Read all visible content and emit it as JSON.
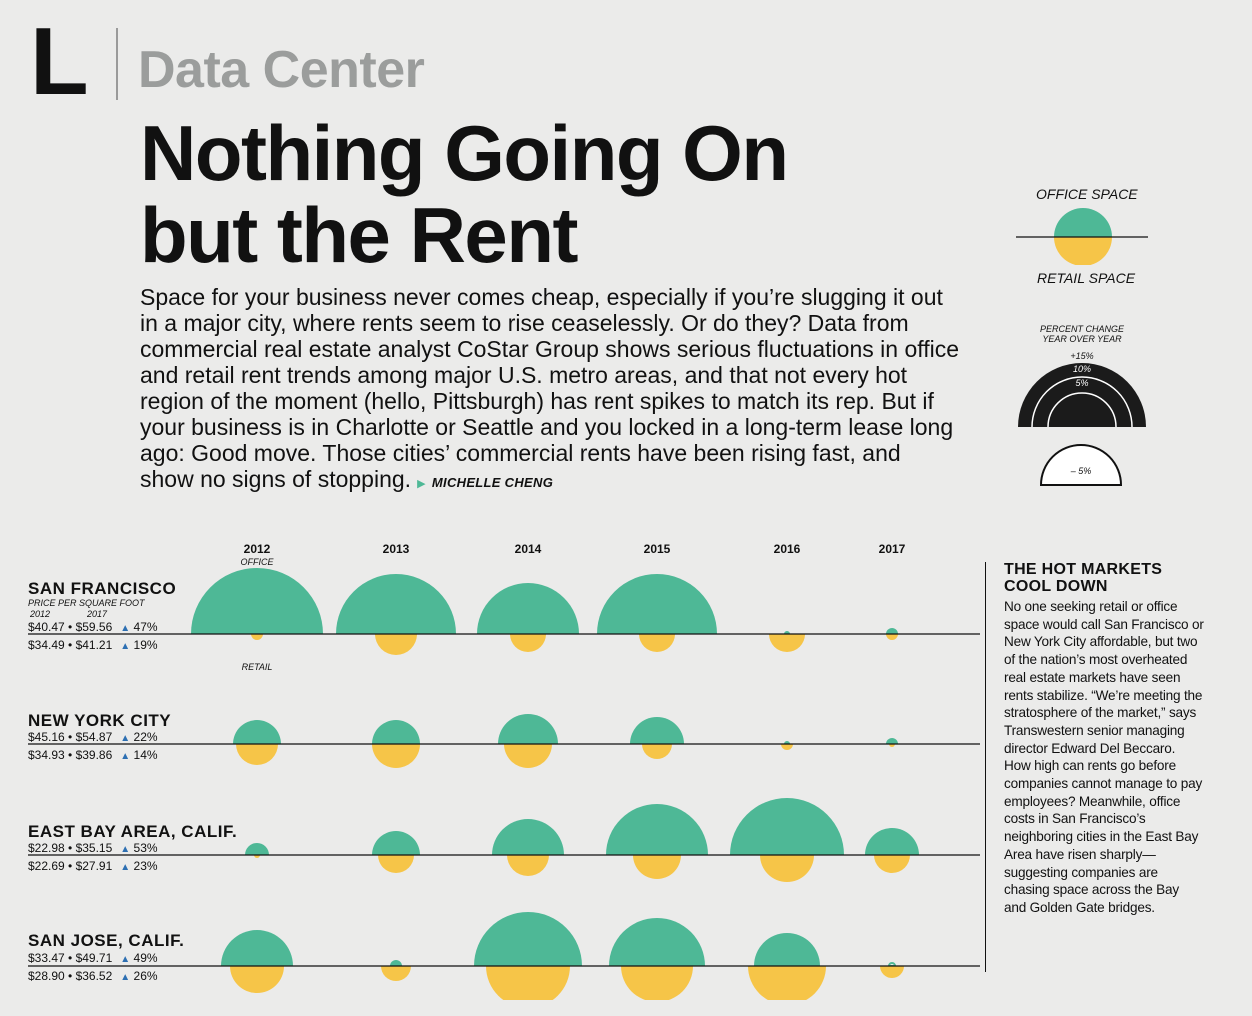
{
  "header": {
    "logo_letter": "L",
    "section": "Data Center",
    "headline_line1": "Nothing Going On",
    "headline_line2": "but the Rent",
    "intro": "Space for your business never comes cheap, especially if you’re slugging it out in a major city, where rents seem to rise ceaselessly. Or do they? Data from commercial real estate analyst CoStar Group shows serious fluctuations in office and retail rent trends among major U.S. metro areas, and that not every hot region of the moment (hello, Pittsburgh) has rent spikes to match its rep. But if your business is in Charlotte or Seattle and you locked in a long-term lease long ago: Good move. Those cities’ commercial rents have been rising fast, and show no signs of stopping.",
    "byline": "MICHELLE CHENG"
  },
  "legend": {
    "office_label": "OFFICE SPACE",
    "retail_label": "RETAIL SPACE",
    "percent_title_1": "PERCENT CHANGE",
    "percent_title_2": "YEAR OVER YEAR",
    "ring_labels": [
      "+15%",
      "10%",
      "5%"
    ],
    "negative_label": "– 5%",
    "colors": {
      "office": "#4eb896",
      "retail": "#f6c548",
      "dark": "#1b1b1b"
    }
  },
  "chart_labels": {
    "office_tag": "OFFICE",
    "retail_tag": "RETAIL",
    "price_per_sq_ft": "PRICE PER SQUARE FOOT",
    "year_start": "2012",
    "year_end": "2017"
  },
  "chart_data": {
    "type": "bubble",
    "categories": [
      "2012",
      "2013",
      "2014",
      "2015",
      "2016",
      "2017"
    ],
    "unit": "percent change year over year",
    "cities": [
      {
        "name": "SAN FRANCISCO",
        "office_line": "$40.47 • $59.56",
        "office_change": "47%",
        "retail_line": "$34.49 • $41.21",
        "retail_change": "19%",
        "office": [
          22,
          20,
          17,
          20,
          1,
          2
        ],
        "retail": [
          2,
          7,
          6,
          6,
          6,
          2
        ]
      },
      {
        "name": "NEW YORK CITY",
        "office_line": "$45.16 • $54.87",
        "office_change": "22%",
        "retail_line": "$34.93 • $39.86",
        "retail_change": "14%",
        "office": [
          8,
          8,
          10,
          9,
          1,
          2
        ],
        "retail": [
          7,
          8,
          8,
          5,
          2,
          1
        ]
      },
      {
        "name": "EAST BAY AREA, CALIF.",
        "office_line": "$22.98 • $35.15",
        "office_change": "53%",
        "retail_line": "$22.69 • $27.91",
        "retail_change": "23%",
        "office": [
          4,
          8,
          12,
          17,
          19,
          9
        ],
        "retail": [
          0.5,
          6,
          7,
          8,
          9,
          6
        ]
      },
      {
        "name": "SAN JOSE, CALIF.",
        "office_line": "$33.47 • $49.71",
        "office_change": "49%",
        "retail_line": "$28.90 • $36.52",
        "retail_change": "26%",
        "office": [
          12,
          2,
          18,
          16,
          11,
          -1
        ],
        "retail": [
          9,
          5,
          14,
          12,
          13,
          4
        ]
      }
    ]
  },
  "sidebar": {
    "title": "THE HOT MARKETS COOL DOWN",
    "text": "No one seeking retail or office space would call San Francisco or New York City affordable, but two of the nation’s most overheated real estate markets have seen rents stabilize. “We’re meeting the stratosphere of the market,” says Trans­western senior managing director Edward Del Beccaro. How high can rents go before companies cannot manage to pay employees? Mean­while, office costs in San Francisco’s neighboring cities in the East Bay Area have risen sharply—suggesting companies are chasing space across the Bay and Golden Gate bridges."
  }
}
